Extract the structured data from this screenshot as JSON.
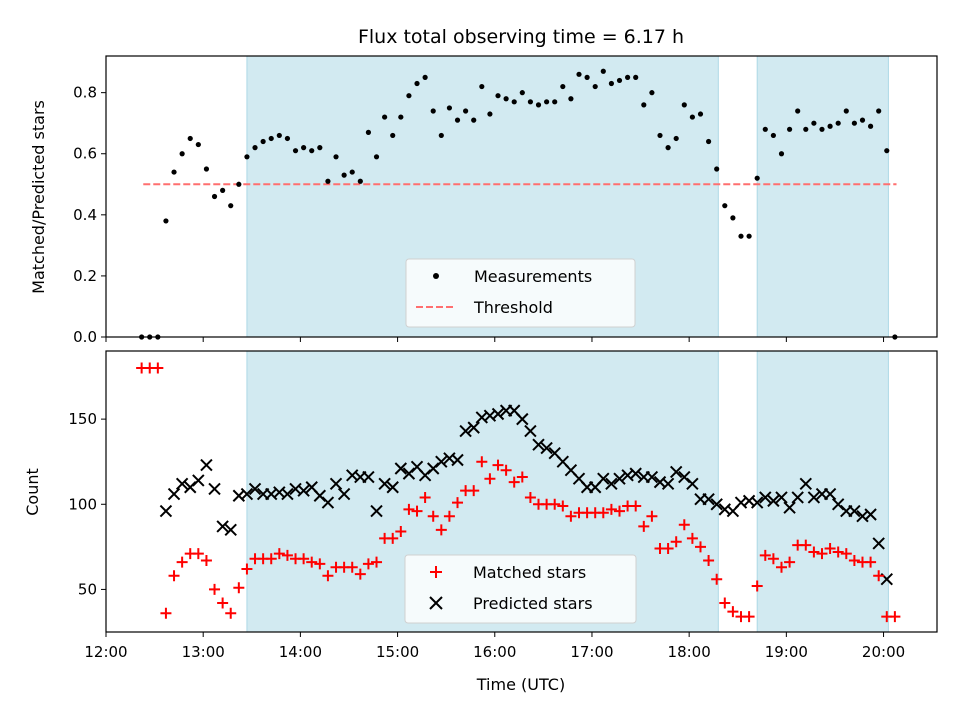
{
  "title": "Flux total observing time = 6.17 h",
  "colors": {
    "shade": "#add8e6",
    "measurement": "#000000",
    "threshold": "#ff6f6f",
    "matched": "#ff0000",
    "predicted": "#000000"
  },
  "chart_data": [
    {
      "type": "scatter",
      "ylabel": "Matched/Predicted stars",
      "xlabel": "",
      "ylim": [
        0,
        0.92
      ],
      "xlim": [
        "12:00",
        "20:33"
      ],
      "yticks": [
        "0.0",
        "0.2",
        "0.4",
        "0.6",
        "0.8"
      ],
      "grid": false,
      "legend": {
        "position": "lower center",
        "entries": [
          "Measurements",
          "Threshold"
        ]
      },
      "shaded_intervals": [
        [
          "13:27",
          "18:18"
        ],
        [
          "18:42",
          "20:03"
        ]
      ],
      "threshold": {
        "name": "Threshold",
        "value": 0.5,
        "x_range": [
          "12:23",
          "20:08"
        ]
      },
      "series": [
        {
          "name": "Measurements",
          "x": [
            "12:22",
            "12:27",
            "12:32",
            "12:37",
            "12:42",
            "12:47",
            "12:52",
            "12:57",
            "13:02",
            "13:07",
            "13:12",
            "13:17",
            "13:22",
            "13:27",
            "13:32",
            "13:37",
            "13:42",
            "13:47",
            "13:52",
            "13:57",
            "14:02",
            "14:07",
            "14:12",
            "14:17",
            "14:22",
            "14:27",
            "14:32",
            "14:37",
            "14:42",
            "14:47",
            "14:52",
            "14:57",
            "15:02",
            "15:07",
            "15:12",
            "15:17",
            "15:22",
            "15:27",
            "15:32",
            "15:37",
            "15:42",
            "15:47",
            "15:52",
            "15:57",
            "16:02",
            "16:07",
            "16:12",
            "16:17",
            "16:22",
            "16:27",
            "16:32",
            "16:37",
            "16:42",
            "16:47",
            "16:52",
            "16:57",
            "17:02",
            "17:07",
            "17:12",
            "17:17",
            "17:22",
            "17:27",
            "17:32",
            "17:37",
            "17:42",
            "17:47",
            "17:52",
            "17:57",
            "18:02",
            "18:07",
            "18:12",
            "18:17",
            "18:22",
            "18:27",
            "18:32",
            "18:37",
            "18:42",
            "18:47",
            "18:52",
            "18:57",
            "19:02",
            "19:07",
            "19:12",
            "19:17",
            "19:22",
            "19:27",
            "19:32",
            "19:37",
            "19:42",
            "19:47",
            "19:52",
            "19:57",
            "20:02",
            "20:07"
          ],
          "y": [
            0.0,
            0.0,
            0.0,
            0.38,
            0.54,
            0.6,
            0.65,
            0.63,
            0.55,
            0.46,
            0.48,
            0.43,
            0.5,
            0.59,
            0.62,
            0.64,
            0.65,
            0.66,
            0.65,
            0.61,
            0.62,
            0.61,
            0.62,
            0.51,
            0.59,
            0.53,
            0.54,
            0.51,
            0.67,
            0.59,
            0.72,
            0.66,
            0.72,
            0.79,
            0.83,
            0.85,
            0.74,
            0.66,
            0.75,
            0.71,
            0.74,
            0.71,
            0.82,
            0.73,
            0.79,
            0.78,
            0.77,
            0.8,
            0.77,
            0.76,
            0.77,
            0.77,
            0.82,
            0.78,
            0.86,
            0.85,
            0.82,
            0.87,
            0.83,
            0.84,
            0.85,
            0.85,
            0.76,
            0.8,
            0.66,
            0.62,
            0.65,
            0.76,
            0.72,
            0.73,
            0.64,
            0.55,
            0.43,
            0.39,
            0.33,
            0.33,
            0.52,
            0.68,
            0.66,
            0.6,
            0.68,
            0.74,
            0.68,
            0.7,
            0.68,
            0.69,
            0.7,
            0.74,
            0.7,
            0.71,
            0.69,
            0.74,
            0.61,
            0.0
          ]
        }
      ]
    },
    {
      "type": "scatter",
      "ylabel": "Count",
      "xlabel": "Time (UTC)",
      "ylim": [
        25,
        190
      ],
      "xlim": [
        "12:00",
        "20:33"
      ],
      "yticks": [
        "50",
        "100",
        "150"
      ],
      "xticks": [
        "12:00",
        "13:00",
        "14:00",
        "15:00",
        "16:00",
        "17:00",
        "18:00",
        "19:00",
        "20:00"
      ],
      "grid": false,
      "legend": {
        "position": "lower center",
        "entries": [
          "Matched stars",
          "Predicted stars"
        ]
      },
      "shaded_intervals": [
        [
          "13:27",
          "18:18"
        ],
        [
          "18:42",
          "20:03"
        ]
      ],
      "series": [
        {
          "name": "Matched stars",
          "x": [
            "12:22",
            "12:27",
            "12:32",
            "12:37",
            "12:42",
            "12:47",
            "12:52",
            "12:57",
            "13:02",
            "13:07",
            "13:12",
            "13:17",
            "13:22",
            "13:27",
            "13:32",
            "13:37",
            "13:42",
            "13:47",
            "13:52",
            "13:57",
            "14:02",
            "14:07",
            "14:12",
            "14:17",
            "14:22",
            "14:27",
            "14:32",
            "14:37",
            "14:42",
            "14:47",
            "14:52",
            "14:57",
            "15:02",
            "15:07",
            "15:12",
            "15:17",
            "15:22",
            "15:27",
            "15:32",
            "15:37",
            "15:42",
            "15:47",
            "15:52",
            "15:57",
            "16:02",
            "16:07",
            "16:12",
            "16:17",
            "16:22",
            "16:27",
            "16:32",
            "16:37",
            "16:42",
            "16:47",
            "16:52",
            "16:57",
            "17:02",
            "17:07",
            "17:12",
            "17:17",
            "17:22",
            "17:27",
            "17:32",
            "17:37",
            "17:42",
            "17:47",
            "17:52",
            "17:57",
            "18:02",
            "18:07",
            "18:12",
            "18:17",
            "18:22",
            "18:27",
            "18:32",
            "18:37",
            "18:42",
            "18:47",
            "18:52",
            "18:57",
            "19:02",
            "19:07",
            "19:12",
            "19:17",
            "19:22",
            "19:27",
            "19:32",
            "19:37",
            "19:42",
            "19:47",
            "19:52",
            "19:57",
            "20:02",
            "20:07"
          ],
          "y": [
            180,
            180,
            180,
            36,
            58,
            66,
            71,
            71,
            67,
            50,
            42,
            36,
            51,
            62,
            68,
            68,
            68,
            71,
            70,
            68,
            68,
            66,
            65,
            58,
            63,
            63,
            63,
            59,
            65,
            66,
            80,
            80,
            84,
            97,
            96,
            104,
            93,
            85,
            93,
            101,
            108,
            108,
            125,
            115,
            123,
            120,
            113,
            116,
            104,
            100,
            100,
            100,
            99,
            93,
            95,
            95,
            95,
            95,
            97,
            96,
            99,
            99,
            87,
            93,
            74,
            74,
            78,
            88,
            80,
            75,
            67,
            56,
            42,
            37,
            34,
            34,
            52,
            70,
            68,
            63,
            66,
            76,
            76,
            72,
            71,
            74,
            72,
            71,
            67,
            66,
            66,
            58,
            34,
            34
          ]
        },
        {
          "name": "Predicted stars",
          "x": [
            "12:37",
            "12:42",
            "12:47",
            "12:52",
            "12:57",
            "13:02",
            "13:07",
            "13:12",
            "13:17",
            "13:22",
            "13:27",
            "13:32",
            "13:37",
            "13:42",
            "13:47",
            "13:52",
            "13:57",
            "14:02",
            "14:07",
            "14:12",
            "14:17",
            "14:22",
            "14:27",
            "14:32",
            "14:37",
            "14:42",
            "14:47",
            "14:52",
            "14:57",
            "15:02",
            "15:07",
            "15:12",
            "15:17",
            "15:22",
            "15:27",
            "15:32",
            "15:37",
            "15:42",
            "15:47",
            "15:52",
            "15:57",
            "16:02",
            "16:07",
            "16:12",
            "16:17",
            "16:22",
            "16:27",
            "16:32",
            "16:37",
            "16:42",
            "16:47",
            "16:52",
            "16:57",
            "17:02",
            "17:07",
            "17:12",
            "17:17",
            "17:22",
            "17:27",
            "17:32",
            "17:37",
            "17:42",
            "17:47",
            "17:52",
            "17:57",
            "18:02",
            "18:07",
            "18:12",
            "18:17",
            "18:22",
            "18:27",
            "18:32",
            "18:37",
            "18:42",
            "18:47",
            "18:52",
            "18:57",
            "19:02",
            "19:07",
            "19:12",
            "19:17",
            "19:22",
            "19:27",
            "19:32",
            "19:37",
            "19:42",
            "19:47",
            "19:52",
            "19:57",
            "20:02"
          ],
          "y": [
            96,
            106,
            112,
            110,
            114,
            123,
            109,
            87,
            85,
            105,
            106,
            109,
            106,
            106,
            107,
            106,
            109,
            108,
            110,
            105,
            101,
            112,
            106,
            117,
            116,
            116,
            96,
            112,
            110,
            121,
            118,
            122,
            117,
            121,
            125,
            127,
            126,
            143,
            145,
            151,
            152,
            153,
            155,
            155,
            150,
            143,
            135,
            133,
            130,
            125,
            120,
            115,
            110,
            110,
            115,
            112,
            115,
            117,
            118,
            116,
            116,
            113,
            112,
            119,
            116,
            112,
            103,
            103,
            100,
            97,
            96,
            101,
            102,
            101,
            104,
            102,
            104,
            98,
            104,
            112,
            104,
            106,
            106,
            100,
            96,
            96,
            93,
            94,
            77,
            56
          ]
        }
      ]
    }
  ]
}
